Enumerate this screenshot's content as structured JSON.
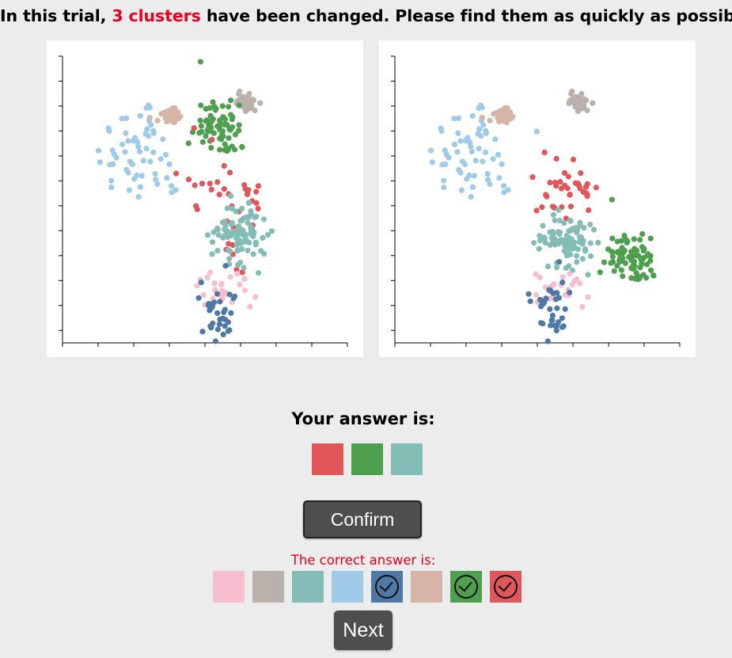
{
  "instruction": {
    "prefix": "In this trial,",
    "highlight": "3 clusters",
    "suffix": "have been changed. Please find them as quickly as possible."
  },
  "answer": {
    "label": "Your answer is:",
    "swatches": [
      {
        "name": "red",
        "color": "#e15759"
      },
      {
        "name": "green",
        "color": "#4e9f4e"
      },
      {
        "name": "teal",
        "color": "#84bdb5"
      }
    ]
  },
  "confirm_label": "Confirm",
  "correct": {
    "label": "The correct answer is:",
    "swatches": [
      {
        "name": "pink",
        "color": "#f7bed0",
        "checked": false
      },
      {
        "name": "gray",
        "color": "#bab0ac",
        "checked": false
      },
      {
        "name": "teal",
        "color": "#84bdb5",
        "checked": false
      },
      {
        "name": "light-blue",
        "color": "#9fcbe8",
        "checked": false
      },
      {
        "name": "dark-blue",
        "color": "#4e79a7",
        "checked": true
      },
      {
        "name": "tan",
        "color": "#d7b5a6",
        "checked": false
      },
      {
        "name": "green",
        "color": "#4e9f4e",
        "checked": true
      },
      {
        "name": "red",
        "color": "#e15759",
        "checked": true
      }
    ]
  },
  "next_label": "Next",
  "chart_data": [
    {
      "type": "scatter",
      "name": "before",
      "x_ticks": 9,
      "y_ticks": 12,
      "clusters": [
        {
          "name": "light-blue",
          "color": "#9fcbe8"
        },
        {
          "name": "tan",
          "color": "#d7b5a6"
        },
        {
          "name": "gray",
          "color": "#bab0ac"
        },
        {
          "name": "green",
          "color": "#4e9f4e"
        },
        {
          "name": "red",
          "color": "#e15759"
        },
        {
          "name": "teal",
          "color": "#84bdb5"
        },
        {
          "name": "pink",
          "color": "#f7bed0"
        },
        {
          "name": "dark-blue",
          "color": "#4e79a7"
        }
      ]
    },
    {
      "type": "scatter",
      "name": "after",
      "x_ticks": 9,
      "y_ticks": 12,
      "clusters": [
        {
          "name": "light-blue",
          "color": "#9fcbe8"
        },
        {
          "name": "tan",
          "color": "#d7b5a6"
        },
        {
          "name": "gray",
          "color": "#bab0ac"
        },
        {
          "name": "green",
          "color": "#4e9f4e"
        },
        {
          "name": "red",
          "color": "#e15759"
        },
        {
          "name": "teal",
          "color": "#84bdb5"
        },
        {
          "name": "pink",
          "color": "#f7bed0"
        },
        {
          "name": "dark-blue",
          "color": "#4e79a7"
        }
      ]
    }
  ]
}
